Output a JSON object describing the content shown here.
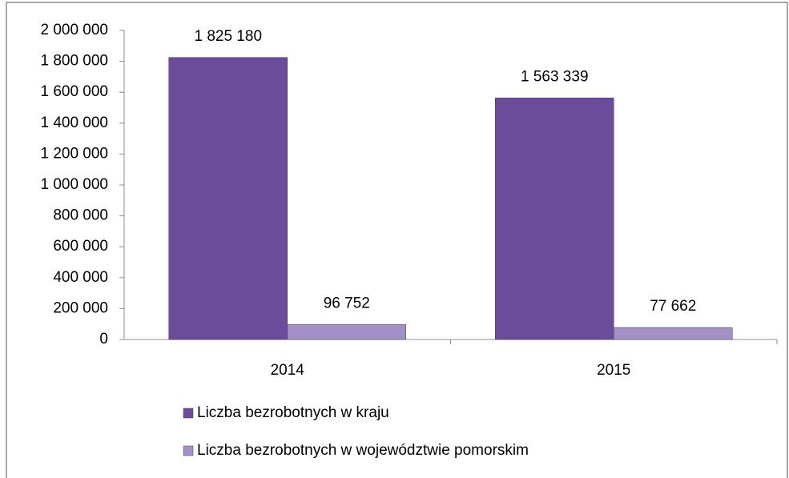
{
  "chart_data": {
    "type": "bar",
    "categories": [
      "2014",
      "2015"
    ],
    "series": [
      {
        "name": "Liczba bezrobotnych w kraju",
        "color": "#6b4c9a",
        "values": [
          1825180,
          1563339
        ],
        "value_labels": [
          "1 825 180",
          "1 563 339"
        ]
      },
      {
        "name": "Liczba bezrobotnych w województwie pomorskim",
        "color": "#a390c4",
        "values": [
          96752,
          77662
        ],
        "value_labels": [
          "96 752",
          "77 662"
        ]
      }
    ],
    "ylim": [
      0,
      2000000
    ],
    "yticks": [
      0,
      {
        "value": 200000,
        "label": "200 000"
      },
      {
        "value": 400000,
        "label": "400 000"
      },
      {
        "value": 600000,
        "label": "600 000"
      },
      {
        "value": 800000,
        "label": "800 000"
      },
      {
        "value": 1000000,
        "label": "1 000 000"
      },
      {
        "value": 1200000,
        "label": "1 200 000"
      },
      {
        "value": 1400000,
        "label": "1 400 000"
      },
      {
        "value": 1600000,
        "label": "1 600 000"
      },
      {
        "value": 1800000,
        "label": "1 800 000"
      },
      {
        "value": 2000000,
        "label": "2 000 000"
      }
    ],
    "grid": false,
    "legend": "bottom"
  }
}
